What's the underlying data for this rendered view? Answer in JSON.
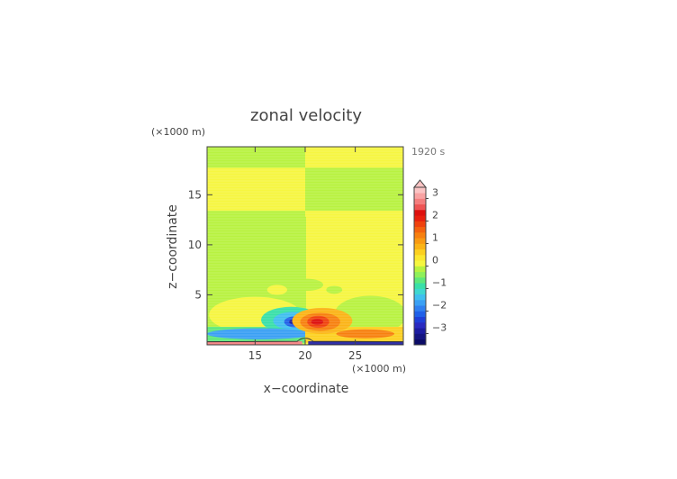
{
  "chart_data": {
    "type": "heatmap",
    "title": "zonal velocity",
    "xlabel": "x−coordinate",
    "ylabel": "z−coordinate",
    "x_unit": "(×1000 m)",
    "y_unit": "(×1000 m)",
    "time_label": "1920 s",
    "xlim": [
      10.2,
      29.8
    ],
    "ylim": [
      0,
      19.8
    ],
    "x_ticks": [
      15,
      20,
      25
    ],
    "y_ticks": [
      5,
      10,
      15
    ],
    "colorbar": {
      "levels": [
        {
          "low": -3.5,
          "high": -3.25,
          "color": "#0b0b66"
        },
        {
          "low": -3.25,
          "high": -3.0,
          "color": "#141480"
        },
        {
          "low": -3.0,
          "high": -2.75,
          "color": "#1c1ca0"
        },
        {
          "low": -2.75,
          "high": -2.5,
          "color": "#2a2ac0"
        },
        {
          "low": -2.5,
          "high": -2.25,
          "color": "#1f3fd8"
        },
        {
          "low": -2.25,
          "high": -2.0,
          "color": "#2060e8"
        },
        {
          "low": -2.0,
          "high": -1.75,
          "color": "#2f7ff0"
        },
        {
          "low": -1.75,
          "high": -1.5,
          "color": "#3aa0f4"
        },
        {
          "low": -1.5,
          "high": -1.25,
          "color": "#40bff0"
        },
        {
          "low": -1.25,
          "high": -1.0,
          "color": "#3fd8d0"
        },
        {
          "low": -1.0,
          "high": -0.75,
          "color": "#39e0a8"
        },
        {
          "low": -0.75,
          "high": -0.5,
          "color": "#5ee87a"
        },
        {
          "low": -0.5,
          "high": -0.25,
          "color": "#8ef05a"
        },
        {
          "low": -0.25,
          "high": 0.0,
          "color": "#b8f240"
        },
        {
          "low": 0.0,
          "high": 0.25,
          "color": "#f6f640"
        },
        {
          "low": 0.25,
          "high": 0.5,
          "color": "#fbe830"
        },
        {
          "low": 0.5,
          "high": 0.75,
          "color": "#fcd020"
        },
        {
          "low": 0.75,
          "high": 1.0,
          "color": "#fbb416"
        },
        {
          "low": 1.0,
          "high": 1.25,
          "color": "#f99a12"
        },
        {
          "low": 1.25,
          "high": 1.5,
          "color": "#f7800f"
        },
        {
          "low": 1.5,
          "high": 1.75,
          "color": "#f4620e"
        },
        {
          "low": 1.75,
          "high": 2.0,
          "color": "#f0420e"
        },
        {
          "low": 2.0,
          "high": 2.25,
          "color": "#e8200e"
        },
        {
          "low": 2.25,
          "high": 2.5,
          "color": "#dd100e"
        },
        {
          "low": 2.5,
          "high": 2.75,
          "color": "#ee5555"
        },
        {
          "low": 2.75,
          "high": 3.0,
          "color": "#f47e7e"
        },
        {
          "low": 3.0,
          "high": 3.25,
          "color": "#f8a2a2"
        },
        {
          "low": 3.25,
          "high": 3.5,
          "color": "#fbc4c4"
        }
      ],
      "tick_labels": [
        "3",
        "2",
        "1",
        "0",
        "−1",
        "−2",
        "−3"
      ],
      "tick_values": [
        3,
        2,
        1,
        0,
        -1,
        -2,
        -3
      ]
    },
    "regions": [
      {
        "shape": "rect",
        "x0": 10.2,
        "x1": 20.0,
        "y0": 0,
        "y1": 19.8,
        "value": -0.1
      },
      {
        "shape": "rect",
        "x0": 20.0,
        "x1": 29.8,
        "y0": 0,
        "y1": 19.8,
        "value": 0.1
      },
      {
        "shape": "rect",
        "x0": 10.2,
        "x1": 20.0,
        "y0": 17.7,
        "y1": 19.8,
        "value": -0.1
      },
      {
        "shape": "rect",
        "x0": 10.2,
        "x1": 20.0,
        "y0": 13.4,
        "y1": 17.7,
        "value": 0.1
      },
      {
        "shape": "rect",
        "x0": 20.0,
        "x1": 29.8,
        "y0": 13.4,
        "y1": 17.7,
        "value": -0.1
      },
      {
        "shape": "ellipse",
        "cx": 20.0,
        "cy": 8.0,
        "rx": 9.8,
        "ry": 4.8,
        "value": -0.1,
        "clip": "left"
      },
      {
        "shape": "ellipse",
        "cx": 20.0,
        "cy": 8.0,
        "rx": 9.8,
        "ry": 4.8,
        "value": 0.1,
        "clip": "right"
      },
      {
        "shape": "ellipse",
        "cx": 15.0,
        "cy": 3.0,
        "rx": 4.6,
        "ry": 1.8,
        "value": 0.1
      },
      {
        "shape": "ellipse",
        "cx": 26.5,
        "cy": 3.0,
        "rx": 3.6,
        "ry": 1.9,
        "value": -0.1
      },
      {
        "shape": "ellipse",
        "cx": 20.2,
        "cy": 6.0,
        "rx": 1.6,
        "ry": 0.6,
        "value": -0.1
      },
      {
        "shape": "ellipse",
        "cx": 17.2,
        "cy": 5.5,
        "rx": 1.0,
        "ry": 0.5,
        "value": 0.1
      },
      {
        "shape": "ellipse",
        "cx": 22.9,
        "cy": 5.5,
        "rx": 0.8,
        "ry": 0.4,
        "value": -0.1
      },
      {
        "shape": "rect",
        "x0": 10.2,
        "x1": 20.0,
        "y0": 0.2,
        "y1": 1.8,
        "value": -0.6
      },
      {
        "shape": "ellipse",
        "cx": 18.6,
        "cy": 2.5,
        "rx": 3.0,
        "ry": 1.3,
        "value": -0.9
      },
      {
        "shape": "ellipse",
        "cx": 18.8,
        "cy": 2.4,
        "rx": 2.0,
        "ry": 0.9,
        "value": -1.4
      },
      {
        "shape": "ellipse",
        "cx": 15.5,
        "cy": 1.1,
        "rx": 5.3,
        "ry": 0.55,
        "value": -1.6
      },
      {
        "shape": "ellipse",
        "cx": 19.0,
        "cy": 2.3,
        "rx": 1.1,
        "ry": 0.55,
        "value": -2.1
      },
      {
        "shape": "ellipse",
        "cx": 19.0,
        "cy": 2.3,
        "rx": 0.6,
        "ry": 0.3,
        "value": -2.9
      },
      {
        "shape": "rect",
        "x0": 20.0,
        "x1": 29.8,
        "y0": 0.2,
        "y1": 1.8,
        "value": 0.6
      },
      {
        "shape": "ellipse",
        "cx": 21.7,
        "cy": 2.4,
        "rx": 3.0,
        "ry": 1.3,
        "value": 0.9
      },
      {
        "shape": "ellipse",
        "cx": 21.5,
        "cy": 2.3,
        "rx": 2.0,
        "ry": 0.9,
        "value": 1.4
      },
      {
        "shape": "ellipse",
        "cx": 26.0,
        "cy": 1.1,
        "rx": 2.9,
        "ry": 0.45,
        "value": 1.4
      },
      {
        "shape": "ellipse",
        "cx": 21.3,
        "cy": 2.3,
        "rx": 1.1,
        "ry": 0.6,
        "value": 1.9
      },
      {
        "shape": "ellipse",
        "cx": 21.2,
        "cy": 2.3,
        "rx": 0.6,
        "ry": 0.3,
        "value": 2.4
      },
      {
        "shape": "rect",
        "x0": 10.2,
        "x1": 19.7,
        "y0": 0.0,
        "y1": 0.35,
        "value": 2.8
      },
      {
        "shape": "rect",
        "x0": 20.3,
        "x1": 29.8,
        "y0": 0.0,
        "y1": 0.35,
        "value": -2.8
      }
    ]
  }
}
